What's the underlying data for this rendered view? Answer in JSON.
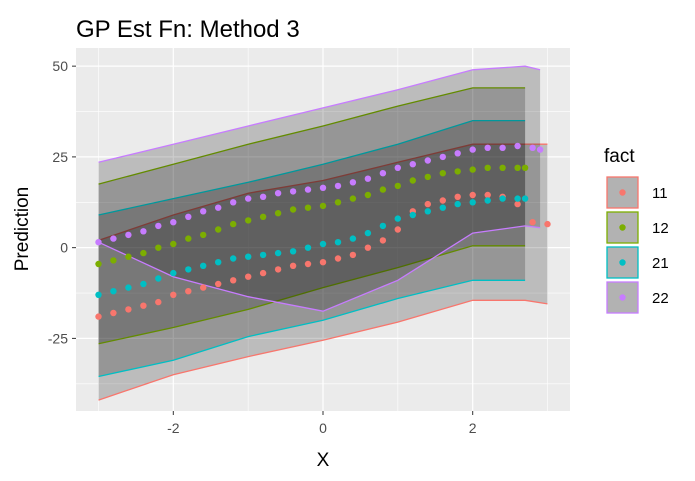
{
  "chart_data": {
    "type": "scatter",
    "title": "GP Est Fn: Method 3",
    "xlabel": "X",
    "ylabel": "Prediction",
    "xlim": [
      -3.3,
      3.3
    ],
    "ylim": [
      -45,
      55
    ],
    "x_ticks": [
      -2,
      0,
      2
    ],
    "y_ticks": [
      -25,
      0,
      25,
      50
    ],
    "grid": true,
    "legend_title": "fact",
    "legend_position": "right",
    "series": [
      {
        "name": "11",
        "color": "#F8766D",
        "band": {
          "x": [
            -3.0,
            -2.0,
            -1.0,
            0.0,
            1.0,
            2.0,
            2.7,
            3.0
          ],
          "upper": [
            2,
            9,
            15,
            18.5,
            23.5,
            28.5,
            28.5,
            28.5
          ],
          "lower": [
            -42,
            -35,
            -30,
            -25.5,
            -20.5,
            -14.5,
            -14.5,
            -15.5
          ]
        },
        "points": {
          "x": [
            -3.0,
            -2.8,
            -2.6,
            -2.4,
            -2.2,
            -2.0,
            -1.8,
            -1.6,
            -1.4,
            -1.2,
            -1.0,
            -0.8,
            -0.6,
            -0.4,
            -0.2,
            0.0,
            0.2,
            0.4,
            0.6,
            0.8,
            1.0,
            1.2,
            1.4,
            1.6,
            1.8,
            2.0,
            2.2,
            2.4,
            2.6,
            2.8,
            3.0
          ],
          "y": [
            -19,
            -18,
            -17,
            -16,
            -15,
            -13,
            -12,
            -11,
            -10,
            -9,
            -8,
            -7,
            -6,
            -5,
            -4.5,
            -4,
            -3,
            -2,
            0,
            2,
            5,
            10,
            12,
            13,
            14,
            14.5,
            14.5,
            14,
            12,
            7,
            6.5
          ]
        }
      },
      {
        "name": "12",
        "color": "#7CAE00",
        "band": {
          "x": [
            -3.0,
            -2.0,
            -1.0,
            0.0,
            1.0,
            2.0,
            2.7
          ],
          "upper": [
            17.5,
            23,
            28.5,
            33.5,
            39,
            44,
            44
          ],
          "lower": [
            -26.5,
            -22,
            -17,
            -11,
            -5.5,
            0.5,
            0.5
          ]
        },
        "points": {
          "x": [
            -3.0,
            -2.8,
            -2.6,
            -2.4,
            -2.2,
            -2.0,
            -1.8,
            -1.6,
            -1.4,
            -1.2,
            -1.0,
            -0.8,
            -0.6,
            -0.4,
            -0.2,
            0.0,
            0.2,
            0.4,
            0.6,
            0.8,
            1.0,
            1.2,
            1.4,
            1.6,
            1.8,
            2.0,
            2.2,
            2.4,
            2.6,
            2.7
          ],
          "y": [
            -4.5,
            -3.5,
            -2.5,
            -1.5,
            0,
            1,
            2.5,
            3.5,
            5,
            6.5,
            7.5,
            8.5,
            9.5,
            10.5,
            11,
            11.5,
            12.5,
            13.5,
            14.5,
            16,
            17,
            18.5,
            19.5,
            20.5,
            21,
            21.5,
            22,
            22,
            22,
            22
          ]
        }
      },
      {
        "name": "21",
        "color": "#00BFC4",
        "band": {
          "x": [
            -3.0,
            -2.0,
            -1.0,
            0.0,
            1.0,
            2.0,
            2.7
          ],
          "upper": [
            9,
            13.5,
            18,
            23,
            28.5,
            35,
            35
          ],
          "lower": [
            -35.5,
            -31,
            -24.5,
            -20,
            -14,
            -9,
            -9
          ]
        },
        "points": {
          "x": [
            -3.0,
            -2.8,
            -2.6,
            -2.4,
            -2.2,
            -2.0,
            -1.8,
            -1.6,
            -1.4,
            -1.2,
            -1.0,
            -0.8,
            -0.6,
            -0.4,
            -0.2,
            0.0,
            0.2,
            0.4,
            0.6,
            0.8,
            1.0,
            1.2,
            1.4,
            1.6,
            1.8,
            2.0,
            2.2,
            2.4,
            2.6,
            2.7
          ],
          "y": [
            -13,
            -12,
            -11,
            -10,
            -8.5,
            -7,
            -6,
            -5,
            -4,
            -3,
            -2.5,
            -2,
            -1.5,
            -1,
            0,
            1,
            1.5,
            2.5,
            4,
            6,
            8,
            9,
            10,
            11,
            12,
            12.5,
            13,
            13.5,
            13.5,
            13.5
          ]
        }
      },
      {
        "name": "22",
        "color": "#C77CFF",
        "band": {
          "x": [
            -3.0,
            -2.0,
            -1.0,
            0.0,
            1.0,
            2.0,
            2.7,
            2.9
          ],
          "upper": [
            23.5,
            28.5,
            33.5,
            38.5,
            43.5,
            49,
            50,
            49
          ],
          "lower": [
            1.5,
            -8,
            -13.5,
            -17.5,
            -9,
            4,
            6,
            5.5
          ]
        },
        "points": {
          "x": [
            -3.0,
            -2.8,
            -2.6,
            -2.4,
            -2.2,
            -2.0,
            -1.8,
            -1.6,
            -1.4,
            -1.2,
            -1.0,
            -0.8,
            -0.6,
            -0.4,
            -0.2,
            0.0,
            0.2,
            0.4,
            0.6,
            0.8,
            1.0,
            1.2,
            1.4,
            1.6,
            1.8,
            2.0,
            2.2,
            2.4,
            2.6,
            2.8,
            2.9
          ],
          "y": [
            1.5,
            2.5,
            3.5,
            4.5,
            6,
            7,
            8.5,
            10,
            11,
            12.5,
            13.5,
            14,
            15,
            15.5,
            16,
            16.5,
            17,
            18,
            19,
            20.5,
            22,
            23,
            24,
            25,
            26,
            27,
            27.5,
            27.5,
            28,
            27.5,
            27
          ]
        }
      }
    ]
  }
}
